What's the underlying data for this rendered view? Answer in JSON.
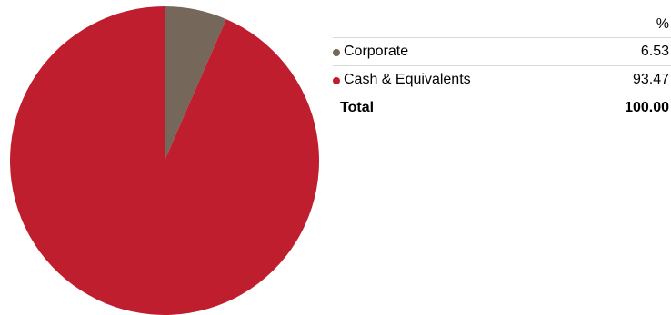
{
  "chart_data": {
    "type": "pie",
    "unit_header": "%",
    "slices": [
      {
        "name": "Corporate",
        "value": 6.53,
        "value_label": "6.53",
        "color": "#756759"
      },
      {
        "name": "Cash & Equivalents",
        "value": 93.47,
        "value_label": "93.47",
        "color": "#be1e2d"
      }
    ],
    "total": {
      "label": "Total",
      "value_label": "100.00"
    }
  }
}
